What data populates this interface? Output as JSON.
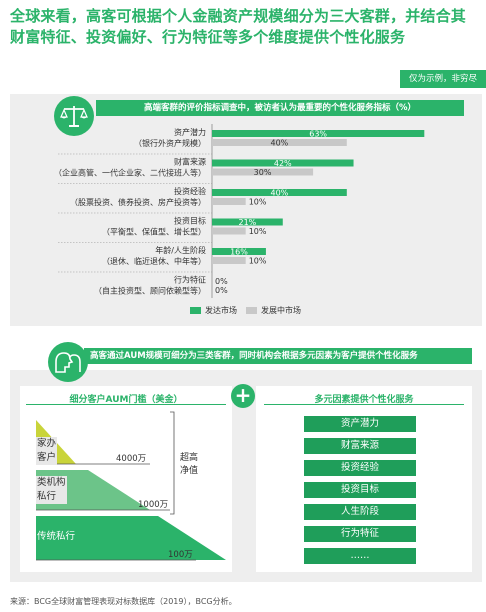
{
  "headline": "全球来看，高客可根据个人金融资产规模细分为三大客群，并结合其财富特征、投资偏好、行为特征等多个维度提供个性化服务",
  "note": "仅为示例，非穷尽",
  "colors": {
    "green": "#2bb36a",
    "dark_green": "#1f9e5a",
    "grey": "#c8c8c8",
    "panel": "#eeeeee"
  },
  "icons": {
    "panel1": "balance-scale-icon",
    "panel2": "two-heads-icon"
  },
  "chart_data": {
    "type": "bar",
    "orientation": "horizontal",
    "title": "高端客群的评价指标调查中，被访者认为最重要的个性化服务指标（%）",
    "categories": [
      [
        "资产潜力",
        "（银行外资产规模）"
      ],
      [
        "财富来源",
        "（企业高管、一代企业家、二代接班人等）"
      ],
      [
        "投资经验",
        "（股票投资、债券投资、房产投资等）"
      ],
      [
        "投资目标",
        "（平衡型、保值型、增长型）"
      ],
      [
        "年龄/人生阶段",
        "（退休、临近退休、中年等）"
      ],
      [
        "行为特征",
        "（自主投资型、顾问依赖型等）"
      ]
    ],
    "series": [
      {
        "name": "发达市场",
        "color": "#2bb36a",
        "values": [
          63,
          42,
          40,
          21,
          16,
          0
        ]
      },
      {
        "name": "发展中市场",
        "color": "#c8c8c8",
        "values": [
          40,
          30,
          10,
          10,
          10,
          0
        ]
      }
    ],
    "xlim": [
      0,
      70
    ],
    "legend": "bottom",
    "grid": false
  },
  "panel2": {
    "title": "高客通过AUM规模可细分为三类客群，同时机构会根据多元因素为客户提供个性化服务",
    "left_title": "细分客户AUM门槛（美金）",
    "right_title": "多元因素提供个性化服务",
    "super_label": [
      "超高",
      "净值"
    ],
    "tiers": [
      {
        "label": [
          "家办",
          "客户"
        ],
        "threshold": "4000万"
      },
      {
        "label": [
          "类机构",
          "私行"
        ],
        "threshold": "1000万"
      },
      {
        "label": [
          "传统私行"
        ],
        "threshold": "100万"
      }
    ],
    "factors": [
      "资产潜力",
      "财富来源",
      "投资经验",
      "投资目标",
      "人生阶段",
      "行为特征",
      "……"
    ]
  },
  "source": "来源：BCG全球财富管理表现对标数据库（2019），BCG分析。"
}
